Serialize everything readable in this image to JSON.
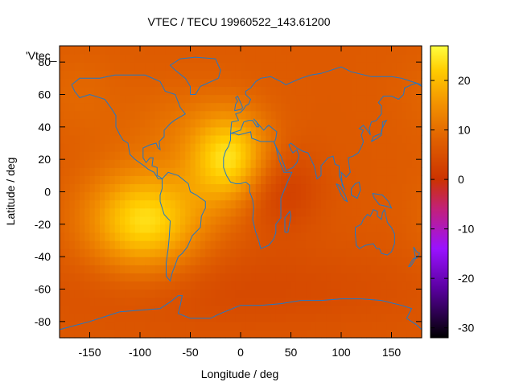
{
  "chart_data": {
    "type": "heatmap",
    "title": "VTEC / TECU 19960522_143.61200",
    "xlabel": "Longitude / deg",
    "ylabel": "Latitude / deg",
    "legend_label": "'Vtec_",
    "xlim": [
      -180,
      180
    ],
    "ylim": [
      -90,
      90
    ],
    "x_ticks": [
      -150,
      -100,
      -50,
      0,
      50,
      100,
      150
    ],
    "y_ticks": [
      -80,
      -60,
      -40,
      -20,
      0,
      20,
      40,
      60,
      80
    ],
    "colorbar": {
      "range": [
        -32,
        27
      ],
      "ticks": [
        -30,
        -20,
        -10,
        0,
        10,
        20
      ],
      "stops": [
        {
          "value": -32,
          "color": "#000000"
        },
        {
          "value": -22,
          "color": "#5a00a0"
        },
        {
          "value": -14,
          "color": "#9a12ff"
        },
        {
          "value": -6,
          "color": "#c2207a"
        },
        {
          "value": 0,
          "color": "#cc3300"
        },
        {
          "value": 8,
          "color": "#e06000"
        },
        {
          "value": 15,
          "color": "#f29000"
        },
        {
          "value": 22,
          "color": "#ffcc00"
        },
        {
          "value": 27,
          "color": "#ffff40"
        }
      ]
    },
    "background_level": 7,
    "features": [
      {
        "lon": -95,
        "lat": -18,
        "amp": 17,
        "sx": 40,
        "sy": 22
      },
      {
        "lon": -10,
        "lat": 20,
        "amp": 17,
        "sx": 28,
        "sy": 20
      },
      {
        "lon": 35,
        "lat": 2,
        "amp": -6,
        "sx": 30,
        "sy": 18
      },
      {
        "lon": 0,
        "lat": -60,
        "amp": -3,
        "sx": 140,
        "sy": 20
      },
      {
        "lon": -160,
        "lat": 60,
        "amp": 2,
        "sx": 30,
        "sy": 20
      },
      {
        "lon": -60,
        "lat": 40,
        "amp": 3,
        "sx": 40,
        "sy": 20
      }
    ],
    "grid": {
      "dlon": 5,
      "dlat": 5
    },
    "coastline_color": "#1f78c8"
  }
}
